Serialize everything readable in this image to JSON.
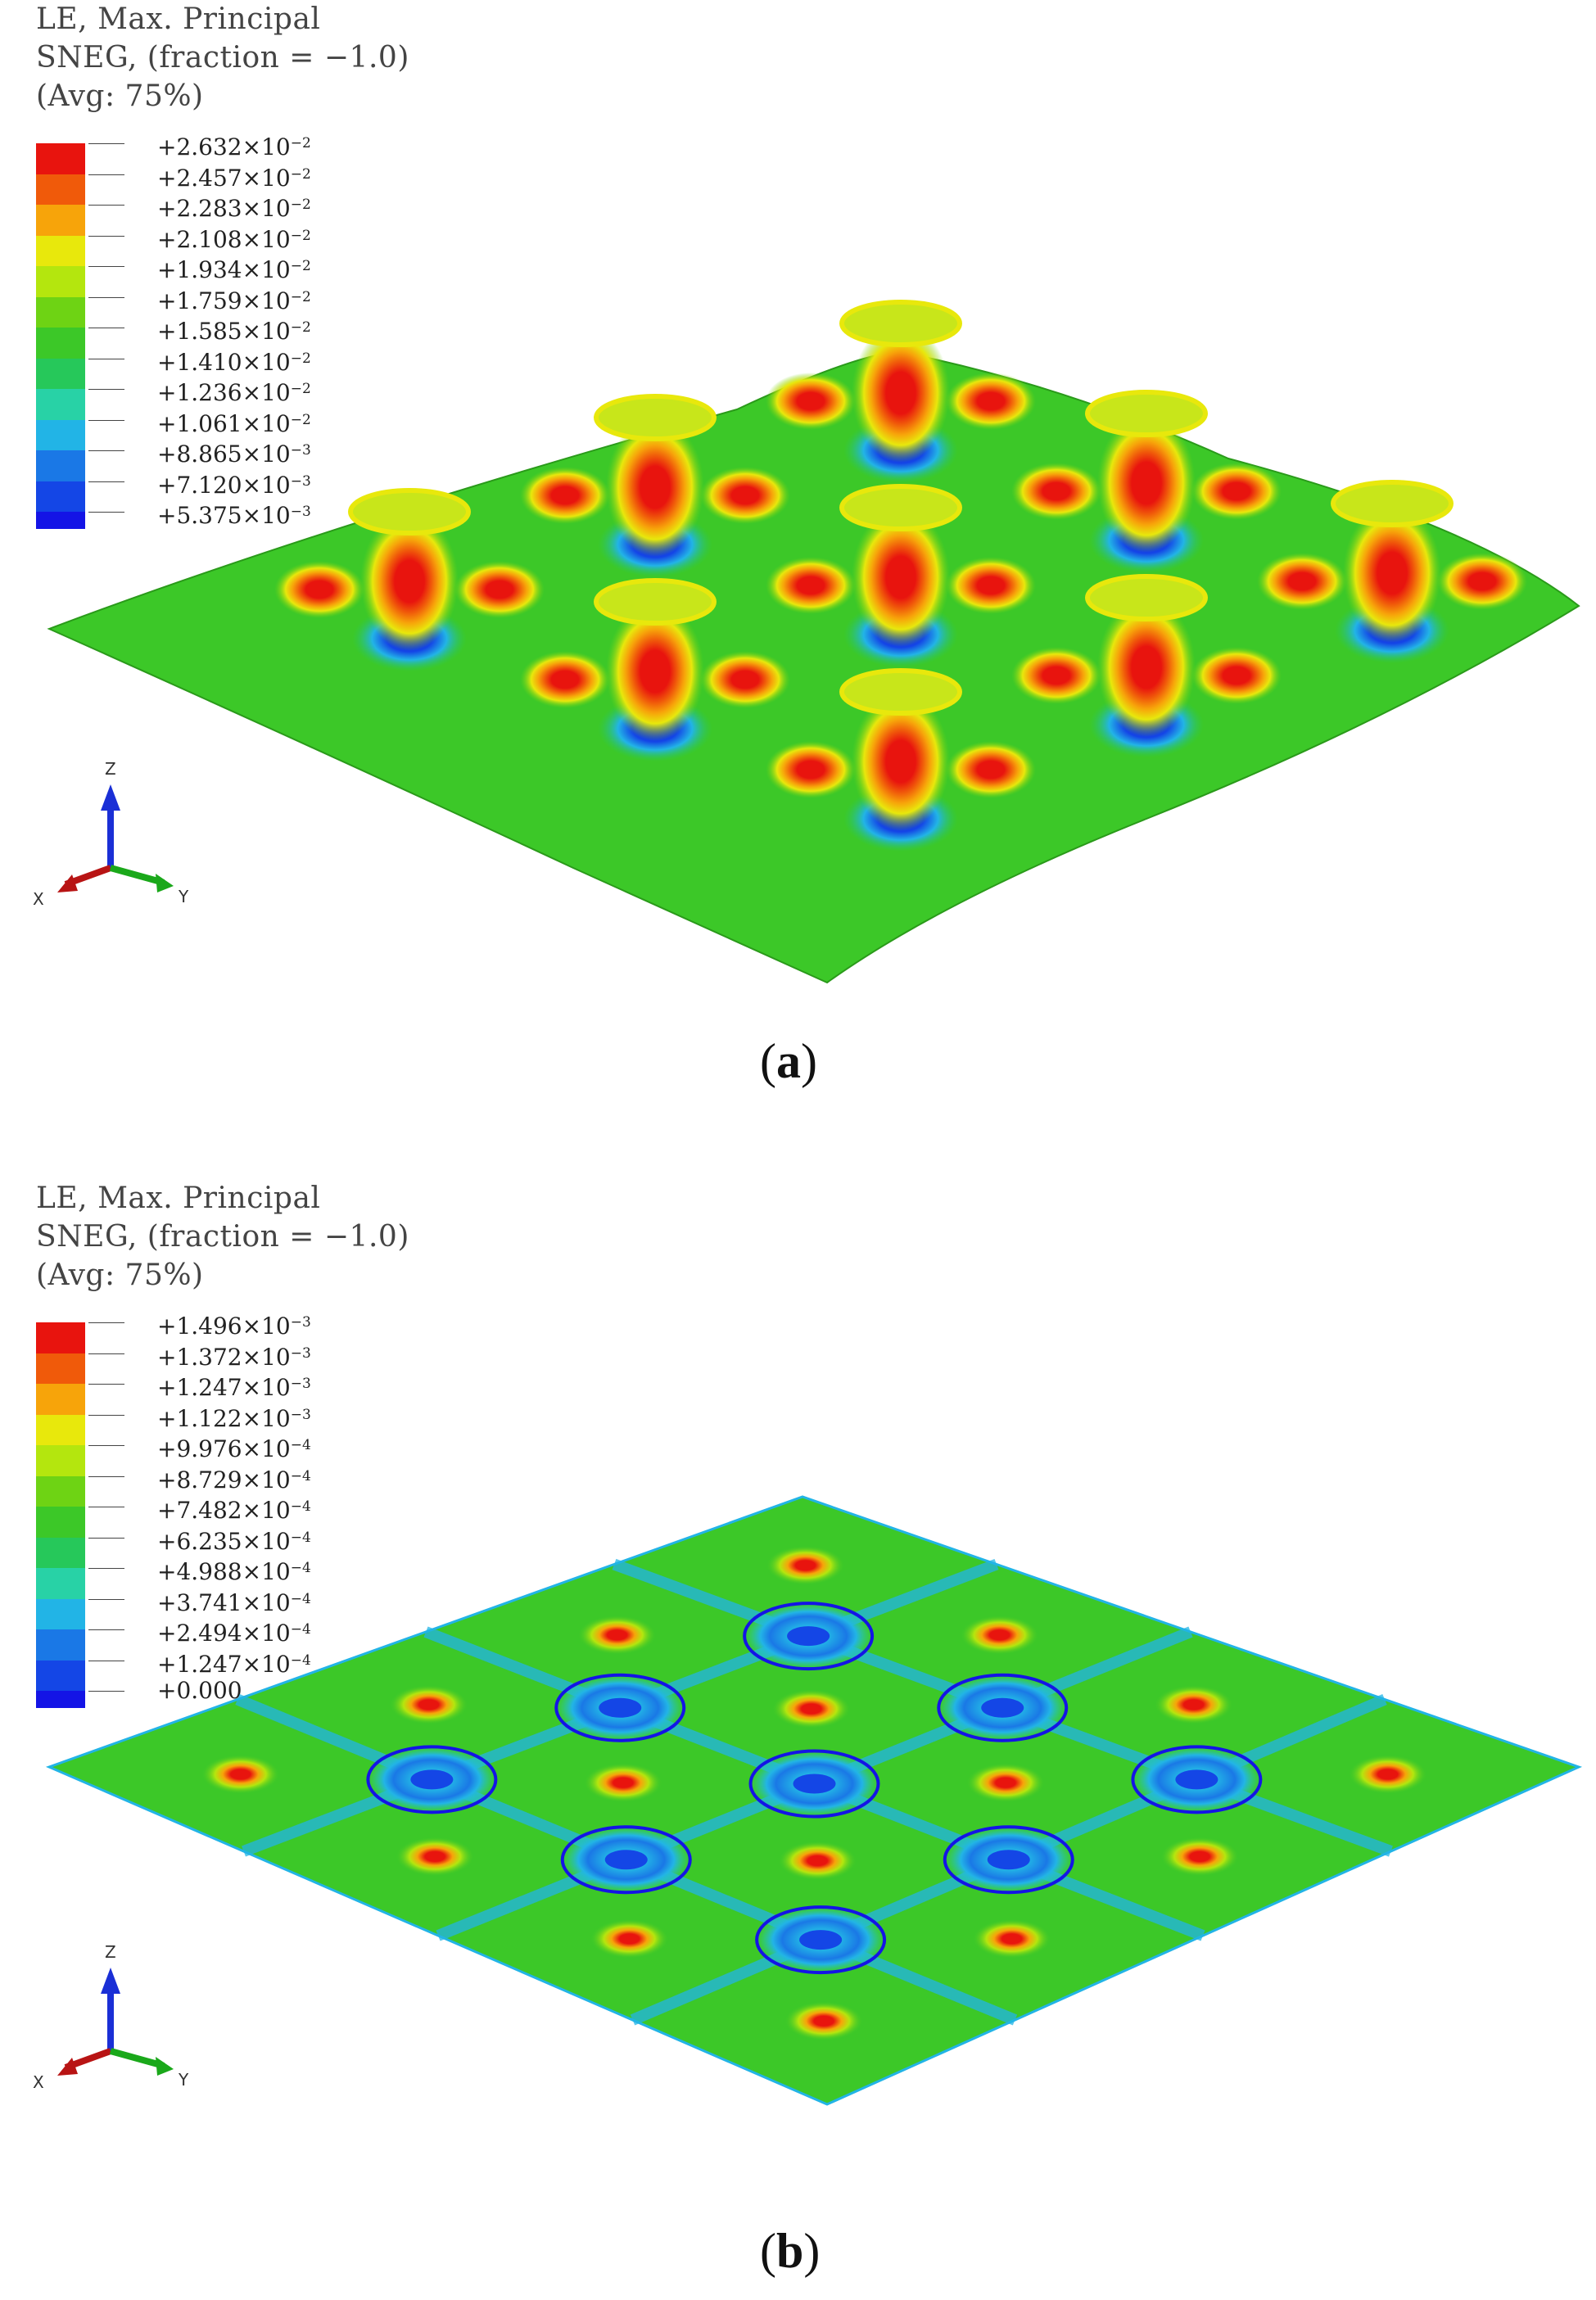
{
  "panels": [
    {
      "caption": "(a)",
      "caption_letter": "a",
      "legend_title": [
        "LE, Max. Principal",
        "SNEG, (fraction = −1.0)",
        "(Avg: 75%)"
      ],
      "legend_values": [
        "+2.632×10",
        "+2.457×10",
        "+2.283×10",
        "+2.108×10",
        "+1.934×10",
        "+1.759×10",
        "+1.585×10",
        "+1.410×10",
        "+1.236×10",
        "+1.061×10",
        "+8.865×10",
        "+7.120×10",
        "+5.375×10"
      ],
      "legend_exponents": [
        "−2",
        "−2",
        "−2",
        "−2",
        "−2",
        "−2",
        "−2",
        "−2",
        "−2",
        "−2",
        "−3",
        "−3",
        "−3"
      ],
      "triad": {
        "z": "Z",
        "x": "X",
        "y": "Y"
      }
    },
    {
      "caption": "(b)",
      "caption_letter": "b",
      "legend_title": [
        "LE, Max. Principal",
        "SNEG, (fraction = −1.0)",
        "(Avg: 75%)"
      ],
      "legend_values": [
        "+1.496×10",
        "+1.372×10",
        "+1.247×10",
        "+1.122×10",
        "+9.976×10",
        "+8.729×10",
        "+7.482×10",
        "+6.235×10",
        "+4.988×10",
        "+3.741×10",
        "+2.494×10",
        "+1.247×10",
        "+0.000"
      ],
      "legend_exponents": [
        "−3",
        "−3",
        "−3",
        "−3",
        "−4",
        "−4",
        "−4",
        "−4",
        "−4",
        "−4",
        "−4",
        "−4",
        ""
      ],
      "triad": {
        "z": "Z",
        "x": "X",
        "y": "Y"
      }
    }
  ],
  "colors": {
    "contour_bands": [
      "#e8140e",
      "#f05a0a",
      "#f7a40a",
      "#e8e80c",
      "#b4e60e",
      "#6ed314",
      "#3cc828",
      "#26c85a",
      "#28d2a6",
      "#22b4e6",
      "#1a78e6",
      "#1446e6",
      "#1414e6"
    ],
    "triad_z": "#1a2fd6",
    "triad_x": "#b81414",
    "triad_y": "#1aa81a"
  }
}
